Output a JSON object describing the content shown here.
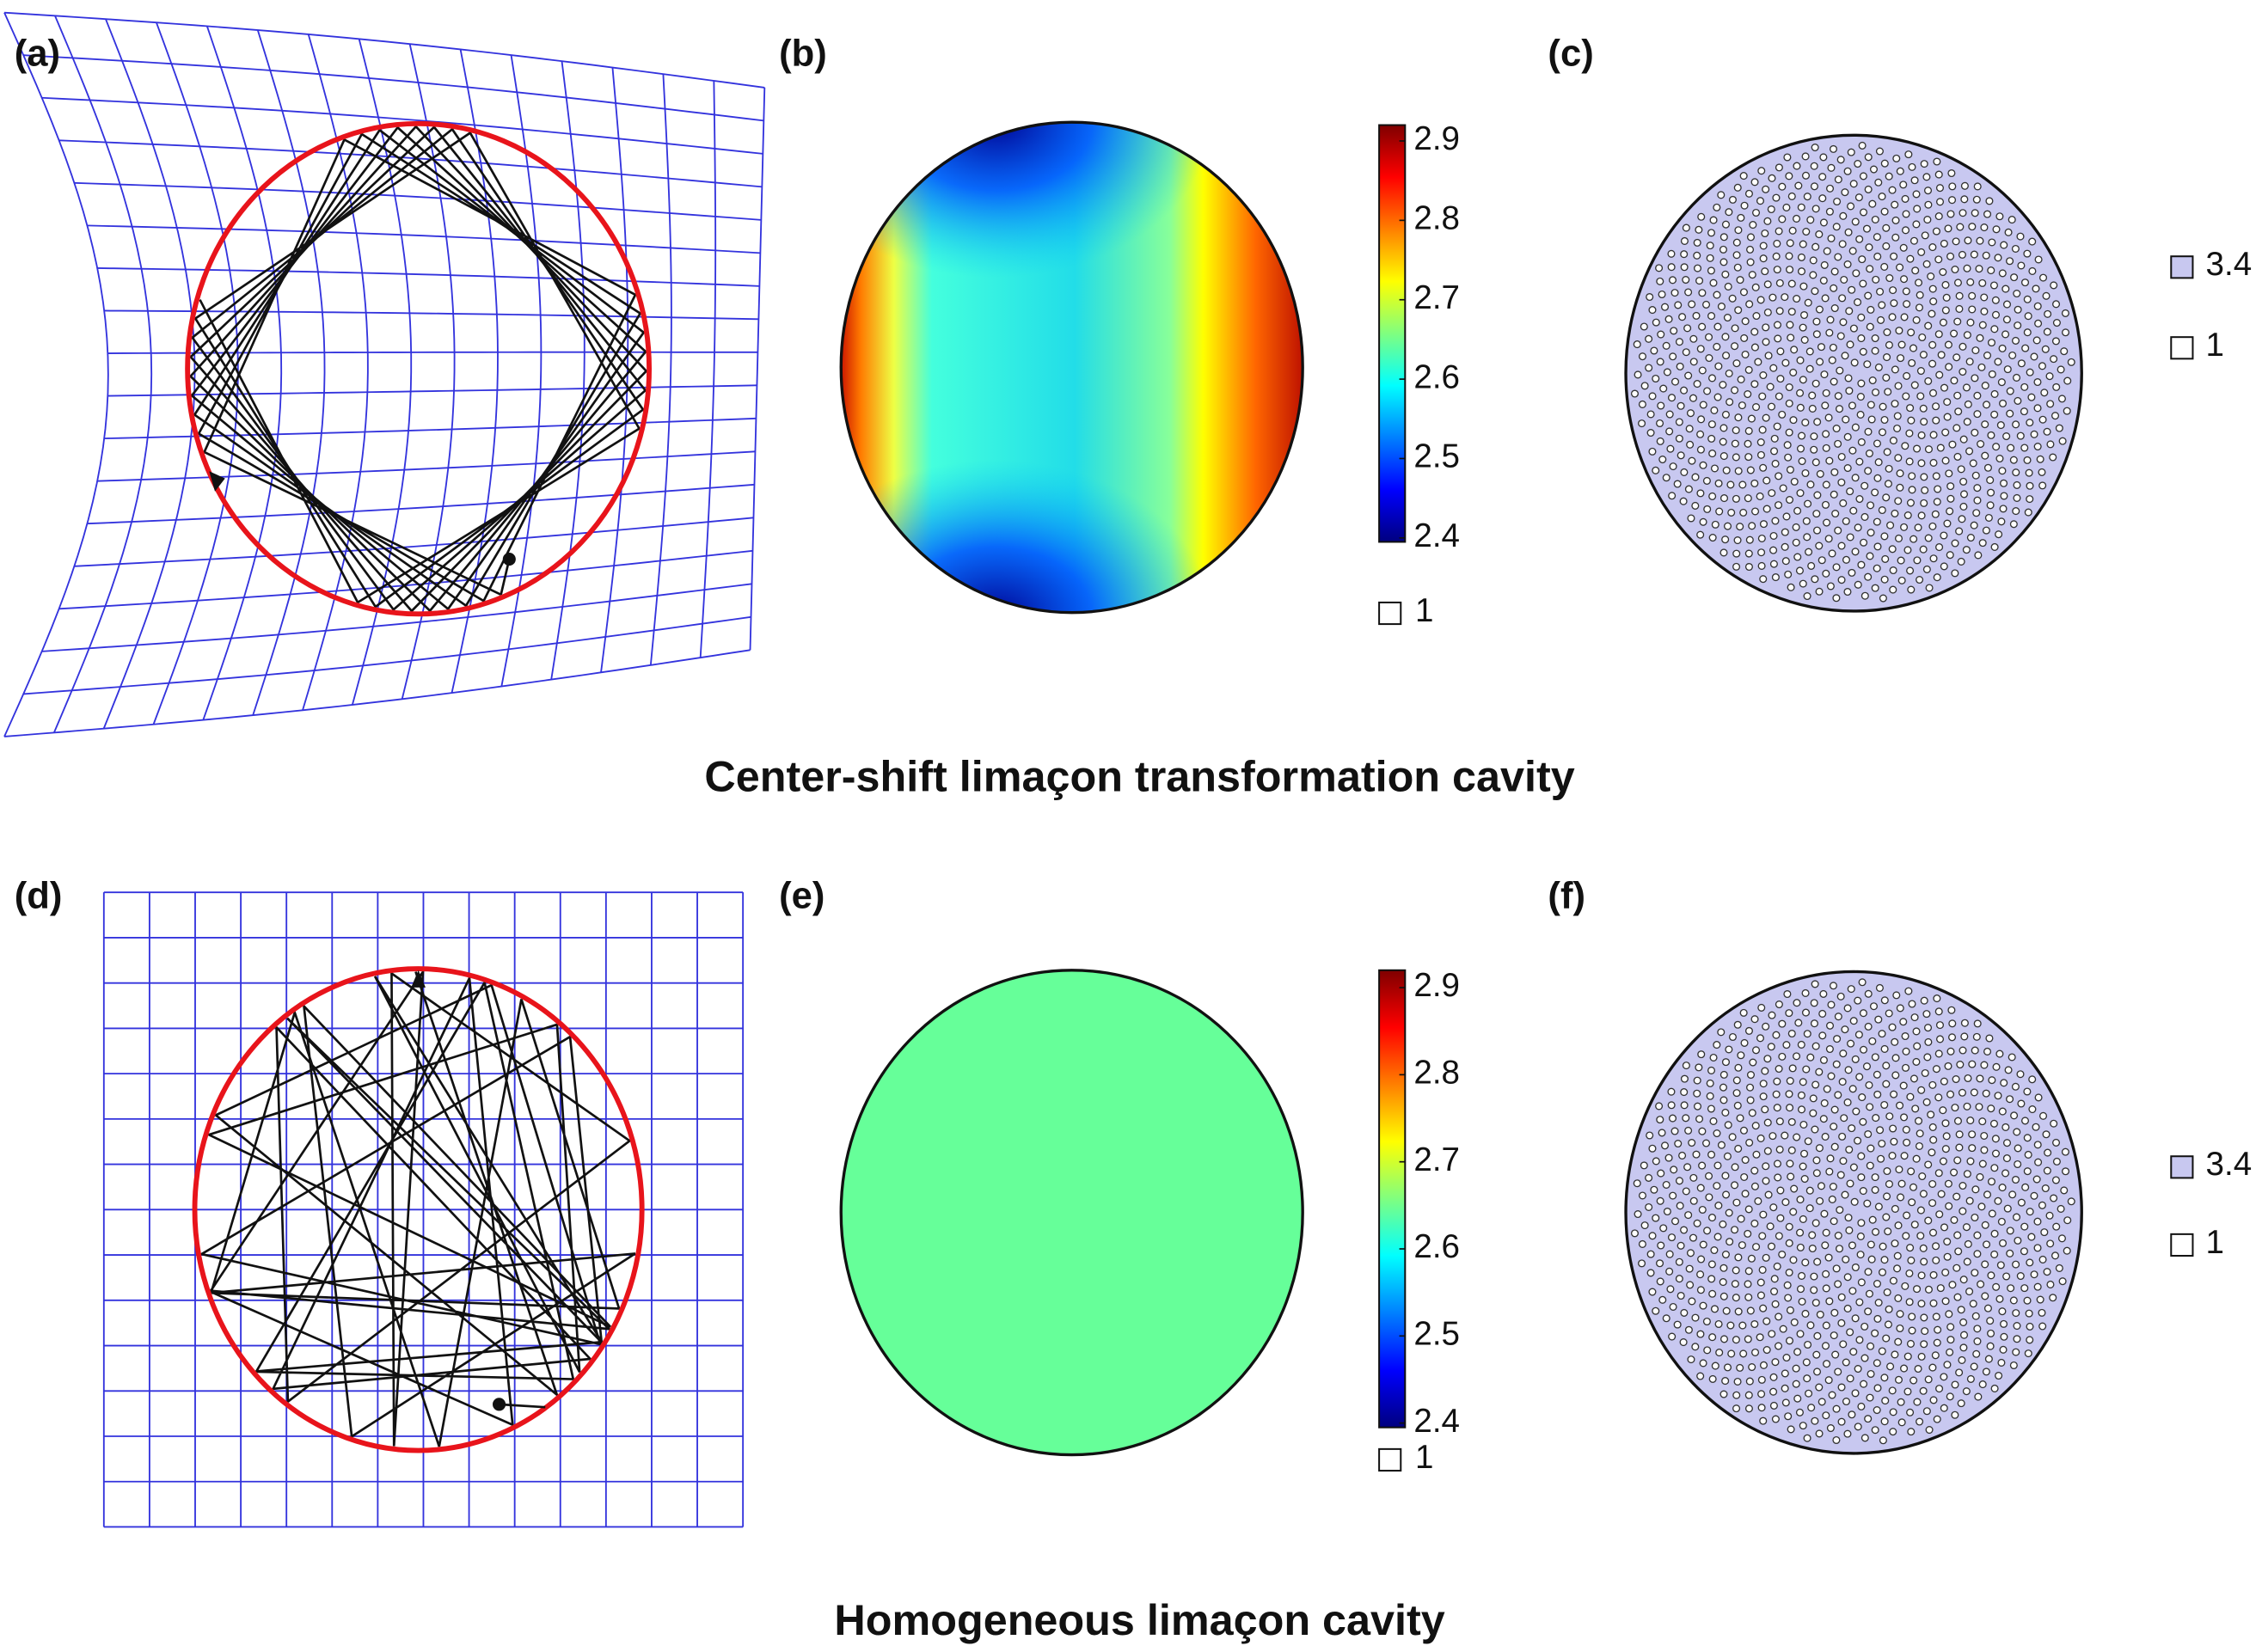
{
  "figures": [
    {
      "caption": "Center-shift limaçon transformation cavity",
      "panels": [
        "(a)",
        "(b)",
        "(c)"
      ],
      "colorbar": {
        "ticks": [
          2.4,
          2.5,
          2.6,
          2.7,
          2.8,
          2.9
        ],
        "lim": [
          2.395,
          2.92
        ]
      },
      "colorbar_legend": "1",
      "legend": [
        "3.4",
        "1"
      ]
    },
    {
      "caption": "Homogeneous limaçon cavity",
      "panels": [
        "(d)",
        "(e)",
        "(f)"
      ],
      "colorbar": {
        "ticks": [
          2.4,
          2.5,
          2.6,
          2.7,
          2.8,
          2.9
        ],
        "lim": [
          2.395,
          2.92
        ]
      },
      "colorbar_legend": "1",
      "legend": [
        "3.4",
        "1"
      ]
    }
  ]
}
